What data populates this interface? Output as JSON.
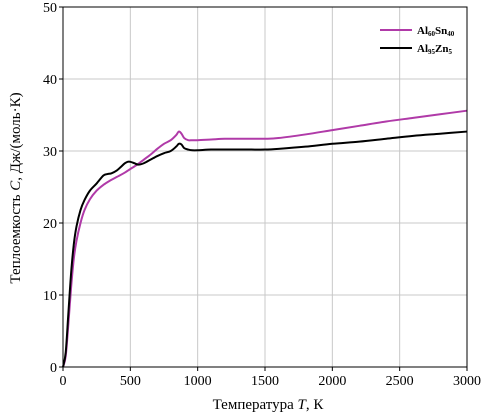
{
  "chart_data": {
    "type": "line",
    "xlabel_prefix": "Температура ",
    "xlabel_var": "T",
    "xlabel_suffix": ", К",
    "ylabel_prefix": "Теплоемкость ",
    "ylabel_var": "C",
    "ylabel_suffix": ", Дж/(моль·К)",
    "xlim": [
      0,
      3000
    ],
    "ylim": [
      0,
      50
    ],
    "xticks": [
      "0",
      "500",
      "1000",
      "1500",
      "2000",
      "2500",
      "3000"
    ],
    "yticks": [
      "0",
      "10",
      "20",
      "30",
      "40",
      "50"
    ],
    "grid": true,
    "legend_position": "top-right",
    "series": [
      {
        "name_main1": "Al",
        "name_sub1": "60",
        "name_main2": "Sn",
        "name_sub2": "40",
        "color": "#b03aa8",
        "x": [
          0,
          20,
          40,
          60,
          80,
          100,
          130,
          160,
          200,
          250,
          300,
          350,
          400,
          450,
          500,
          550,
          600,
          650,
          700,
          750,
          800,
          840,
          860,
          880,
          900,
          930,
          960,
          1000,
          1100,
          1200,
          1300,
          1400,
          1500,
          1600,
          1800,
          2000,
          2200,
          2400,
          2600,
          2800,
          3000
        ],
        "y": [
          0,
          1.5,
          6,
          11,
          15,
          17.5,
          20,
          21.8,
          23.3,
          24.5,
          25.3,
          25.9,
          26.4,
          26.9,
          27.5,
          28.1,
          28.8,
          29.5,
          30.3,
          31,
          31.5,
          32.2,
          32.7,
          32.4,
          31.8,
          31.5,
          31.5,
          31.5,
          31.6,
          31.7,
          31.7,
          31.7,
          31.7,
          31.8,
          32.3,
          32.9,
          33.5,
          34.1,
          34.6,
          35.1,
          35.6
        ]
      },
      {
        "name_main1": "Al",
        "name_sub1": "95",
        "name_main2": "Zn",
        "name_sub2": "5",
        "color": "#000000",
        "x": [
          0,
          20,
          40,
          60,
          80,
          100,
          130,
          160,
          200,
          250,
          300,
          330,
          360,
          400,
          430,
          460,
          480,
          500,
          530,
          560,
          600,
          650,
          700,
          750,
          800,
          840,
          860,
          880,
          900,
          930,
          960,
          1000,
          1100,
          1200,
          1300,
          1400,
          1500,
          1600,
          1800,
          2000,
          2200,
          2400,
          2600,
          2800,
          3000
        ],
        "y": [
          0,
          2,
          7.5,
          13,
          17,
          19.5,
          21.8,
          23.2,
          24.5,
          25.5,
          26.6,
          26.8,
          26.9,
          27.3,
          27.8,
          28.3,
          28.5,
          28.5,
          28.3,
          28.1,
          28.3,
          28.8,
          29.3,
          29.7,
          30,
          30.6,
          31,
          30.9,
          30.4,
          30.2,
          30.1,
          30.1,
          30.2,
          30.2,
          30.2,
          30.2,
          30.2,
          30.3,
          30.6,
          31,
          31.3,
          31.7,
          32.1,
          32.4,
          32.7
        ]
      }
    ]
  }
}
